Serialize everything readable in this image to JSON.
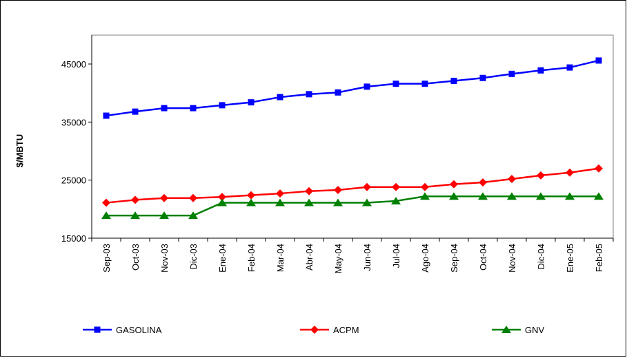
{
  "chart_data": {
    "type": "line",
    "title": "",
    "xlabel": "",
    "ylabel": "$/MBTU",
    "ylim": [
      15000,
      45000
    ],
    "yticks": [
      15000,
      25000,
      35000,
      45000
    ],
    "grid": false,
    "legend_position": "bottom",
    "categories": [
      "Sep-03",
      "Oct-03",
      "Nov-03",
      "Dic-03",
      "Ene-04",
      "Feb-04",
      "Mar-04",
      "Abr-04",
      "May-04",
      "Jun-04",
      "Jul-04",
      "Ago-04",
      "Sep-04",
      "Oct-04",
      "Nov-04",
      "Dic-04",
      "Ene-05",
      "Feb-05"
    ],
    "series": [
      {
        "name": "GASOLINA",
        "color": "#0000ff",
        "marker": "square",
        "values": [
          36100,
          36800,
          37400,
          37400,
          37900,
          38400,
          39300,
          39800,
          40100,
          41100,
          41600,
          41600,
          42100,
          42600,
          43300,
          43900,
          44400,
          45600
        ]
      },
      {
        "name": "ACPM",
        "color": "#ff0000",
        "marker": "diamond",
        "values": [
          21100,
          21600,
          21900,
          21900,
          22100,
          22400,
          22700,
          23100,
          23300,
          23800,
          23800,
          23800,
          24300,
          24600,
          25200,
          25800,
          26300,
          27000
        ]
      },
      {
        "name": "GNV",
        "color": "#008000",
        "marker": "triangle",
        "values": [
          18900,
          18900,
          18900,
          18900,
          21100,
          21100,
          21100,
          21100,
          21100,
          21100,
          21400,
          22200,
          22200,
          22200,
          22200,
          22200,
          22200,
          22200
        ]
      }
    ]
  }
}
